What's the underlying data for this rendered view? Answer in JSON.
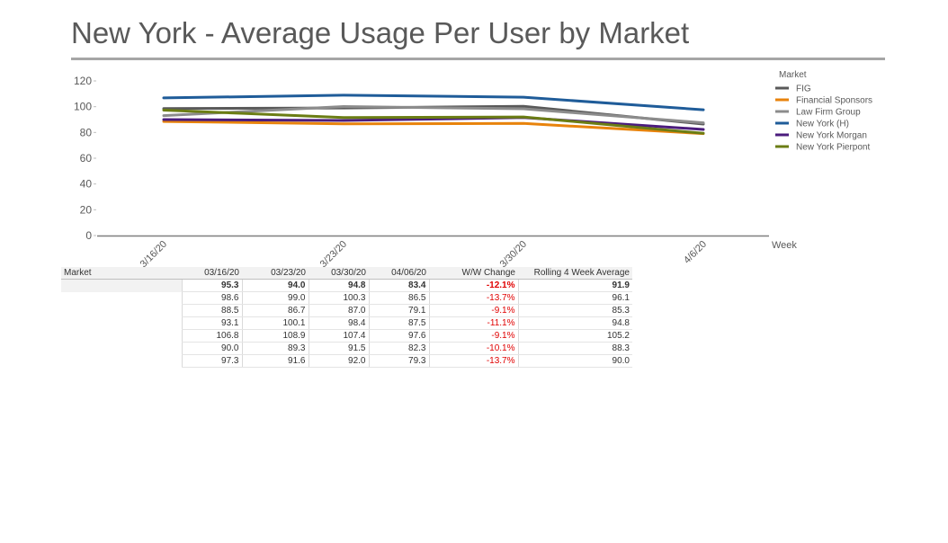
{
  "page": {
    "title": "New York - Average Usage Per User by Market"
  },
  "chart_data": {
    "type": "line",
    "title": "New York - Average Usage Per User by Market",
    "xlabel": "Week",
    "ylabel": "",
    "x": [
      "3/16/20",
      "3/23/20",
      "3/30/20",
      "4/6/20"
    ],
    "ylim": [
      0,
      120
    ],
    "yticks": [
      0,
      20,
      40,
      60,
      80,
      100,
      120
    ],
    "legend_title": "Market",
    "legend_position": "right",
    "series": [
      {
        "name": "FIG",
        "color": "#595959",
        "values": [
          98.6,
          99.0,
          100.3,
          86.5
        ]
      },
      {
        "name": "Financial Sponsors",
        "color": "#e8830c",
        "values": [
          88.5,
          86.7,
          87.0,
          79.1
        ]
      },
      {
        "name": "Law Firm Group",
        "color": "#8c8c8c",
        "values": [
          93.1,
          100.1,
          98.4,
          87.5
        ]
      },
      {
        "name": "New York (H)",
        "color": "#1f5c99",
        "values": [
          106.8,
          108.9,
          107.4,
          97.6
        ]
      },
      {
        "name": "New York Morgan",
        "color": "#4b1c7d",
        "values": [
          90.0,
          89.3,
          91.5,
          82.3
        ]
      },
      {
        "name": "New York Pierpont",
        "color": "#6b7d14",
        "values": [
          97.3,
          91.6,
          92.0,
          79.3
        ]
      }
    ]
  },
  "table": {
    "headers": [
      "Market",
      "03/16/20",
      "03/23/20",
      "03/30/20",
      "04/06/20",
      "W/W Change",
      "Rolling 4 Week Average"
    ],
    "rows": [
      {
        "market": "",
        "values": [
          "95.3",
          "94.0",
          "94.8",
          "83.4",
          "-12.1%",
          "91.9"
        ],
        "total": true
      },
      {
        "market": "",
        "values": [
          "98.6",
          "99.0",
          "100.3",
          "86.5",
          "-13.7%",
          "96.1"
        ]
      },
      {
        "market": "",
        "values": [
          "88.5",
          "86.7",
          "87.0",
          "79.1",
          "-9.1%",
          "85.3"
        ]
      },
      {
        "market": "",
        "values": [
          "93.1",
          "100.1",
          "98.4",
          "87.5",
          "-11.1%",
          "94.8"
        ]
      },
      {
        "market": "",
        "values": [
          "106.8",
          "108.9",
          "107.4",
          "97.6",
          "-9.1%",
          "105.2"
        ]
      },
      {
        "market": "",
        "values": [
          "90.0",
          "89.3",
          "91.5",
          "82.3",
          "-10.1%",
          "88.3"
        ]
      },
      {
        "market": "",
        "values": [
          "97.3",
          "91.6",
          "92.0",
          "79.3",
          "-13.7%",
          "90.0"
        ]
      }
    ]
  }
}
